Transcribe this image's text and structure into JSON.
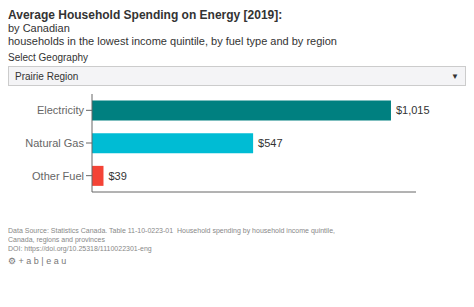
{
  "chart_data": {
    "type": "bar",
    "orientation": "horizontal",
    "title": "Average Household Spending on Energy [2019]:",
    "subtitle": "by Canadian\nhouseholds in the lowest income quintile, by fuel type and by region",
    "annotations": [
      "Select Geography",
      "Prairie Region",
      "▼",
      "Data Source: Statistics Canada. Table 11-10-0223-01  Household spending by household income quintile,\nCanada, regions and provinces\nDOI: https://doi.org/10.25318/1110022301-eng",
      "⚙ + a b | e a u"
    ],
    "categories": [
      "Electricity",
      "Natural Gas",
      "Other Fuel"
    ],
    "values": [
      1015,
      547,
      39
    ],
    "value_labels": [
      "$1,015",
      "$547",
      "$39"
    ],
    "colors": [
      "#008080",
      "#00bcd4",
      "#f44336"
    ],
    "xlim": [
      0,
      1100
    ],
    "data_labels": true,
    "tick_labels": "y",
    "grid": false
  }
}
